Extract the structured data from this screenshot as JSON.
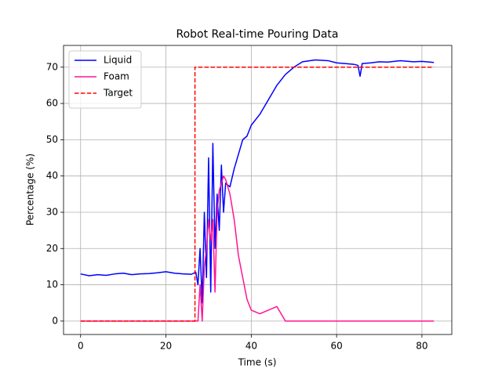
{
  "chart_data": {
    "type": "line",
    "title": "Robot Real-time Pouring Data",
    "x_label": "Time (s)",
    "y_label": "Percentage (%)",
    "x": [
      0,
      2,
      4,
      6,
      8,
      10,
      12,
      14,
      16,
      18,
      20,
      22,
      24,
      26,
      27,
      27.5,
      28,
      28.5,
      29,
      29.5,
      30,
      30.5,
      31,
      31.5,
      32,
      32.5,
      33,
      33.5,
      34,
      35,
      36,
      37,
      38,
      39,
      40,
      42,
      44,
      46,
      48,
      50,
      52,
      55,
      58,
      60,
      62,
      64,
      65,
      65.5,
      66,
      68,
      70,
      72,
      75,
      78,
      80,
      82.8
    ],
    "series": [
      {
        "name": "Liquid",
        "color": "#0000ff",
        "style": "solid",
        "values": [
          13,
          12.5,
          12.8,
          12.6,
          13,
          13.2,
          12.8,
          13,
          13.1,
          13.3,
          13.6,
          13.2,
          13,
          12.9,
          13.5,
          10,
          20,
          5,
          30,
          12,
          45,
          8,
          49,
          20,
          35,
          25,
          43,
          30,
          38,
          37,
          42,
          46,
          50,
          51,
          54,
          57,
          61,
          65,
          68,
          70,
          71.5,
          72,
          71.8,
          71.2,
          71,
          70.8,
          70.5,
          67.5,
          71,
          71.2,
          71.5,
          71.4,
          71.8,
          71.5,
          71.6,
          71.3
        ]
      },
      {
        "name": "Foam",
        "color": "#ff1493",
        "style": "solid",
        "values": [
          0,
          0,
          0,
          0,
          0,
          0,
          0,
          0,
          0,
          0,
          0,
          0,
          0,
          0,
          0,
          0,
          10,
          0,
          15,
          20,
          28,
          22,
          28,
          8,
          30,
          36,
          38,
          40,
          39,
          35,
          28,
          18,
          12,
          6,
          3,
          2,
          3,
          4,
          0,
          0,
          0,
          0,
          0,
          0,
          0,
          0,
          0,
          0,
          0,
          0,
          0,
          0,
          0,
          0,
          0,
          0
        ]
      },
      {
        "name": "Target",
        "color": "#ff0000",
        "style": "dashed",
        "x": [
          0,
          26.8,
          26.8,
          82.8
        ],
        "values": [
          0,
          0,
          70,
          70
        ]
      }
    ],
    "xlim": [
      -4,
      87
    ],
    "ylim": [
      -3.7,
      76
    ],
    "xticks": [
      0,
      20,
      40,
      60,
      80
    ],
    "yticks": [
      0,
      10,
      20,
      30,
      40,
      50,
      60,
      70
    ],
    "grid": true,
    "legend": "upper-left"
  }
}
